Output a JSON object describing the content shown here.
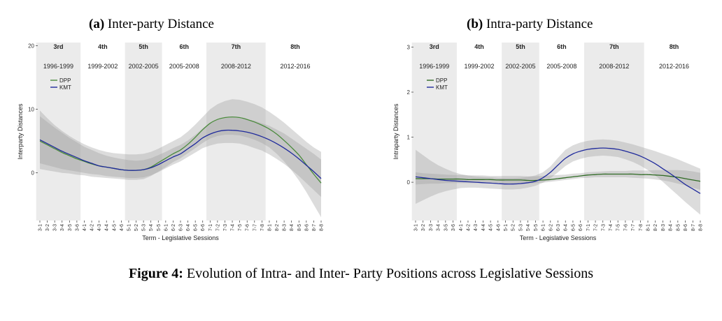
{
  "figure": {
    "caption_label": "Figure 4:",
    "caption_text": "Evolution of Intra- and Inter- Party Positions across Legislative Sessions"
  },
  "chart_data": [
    {
      "id": "a",
      "type": "line",
      "title_label": "(a)",
      "title_text": "Inter-party Distance",
      "xlabel": "Term - Legislative Sessions",
      "ylabel": "Interparty Distances",
      "ylim": [
        -7.5,
        20.5
      ],
      "yticks": [
        0,
        10,
        20
      ],
      "x": [
        "3-1",
        "3-2",
        "3-3",
        "3-4",
        "3-5",
        "3-6",
        "4-1",
        "4-2",
        "4-3",
        "4-4",
        "4-5",
        "4-6",
        "5-1",
        "5-2",
        "5-3",
        "5-4",
        "5-5",
        "6-1",
        "6-2",
        "6-3",
        "6-4",
        "6-5",
        "6-6",
        "7-1",
        "7-2",
        "7-3",
        "7-4",
        "7-5",
        "7-6",
        "7-7",
        "7-8",
        "8-1",
        "8-2",
        "8-3",
        "8-4",
        "8-5",
        "8-6",
        "8-7",
        "8-8"
      ],
      "terms": [
        {
          "name": "3rd",
          "years": "1996-1999",
          "start": 0,
          "end": 5,
          "shaded": true
        },
        {
          "name": "4th",
          "years": "1999-2002",
          "start": 6,
          "end": 11,
          "shaded": false
        },
        {
          "name": "5th",
          "years": "2002-2005",
          "start": 12,
          "end": 16,
          "shaded": true
        },
        {
          "name": "6th",
          "years": "2005-2008",
          "start": 17,
          "end": 22,
          "shaded": false
        },
        {
          "name": "7th",
          "years": "2008-2012",
          "start": 23,
          "end": 30,
          "shaded": true
        },
        {
          "name": "8th",
          "years": "2012-2016",
          "start": 31,
          "end": 38,
          "shaded": false
        }
      ],
      "legend_position": "top-left",
      "series": [
        {
          "name": "DPP",
          "color": "#4a8a3c",
          "values": [
            5.0,
            4.4,
            3.8,
            3.2,
            2.7,
            2.2,
            1.8,
            1.4,
            1.1,
            0.9,
            0.7,
            0.5,
            0.4,
            0.4,
            0.5,
            0.9,
            1.6,
            2.3,
            3.0,
            3.6,
            4.5,
            5.6,
            6.8,
            7.8,
            8.4,
            8.7,
            8.8,
            8.7,
            8.4,
            8.0,
            7.5,
            6.9,
            6.1,
            5.1,
            4.0,
            2.8,
            1.3,
            -0.2,
            -1.6
          ],
          "lower": [
            0.6,
            0.4,
            0.2,
            0.0,
            -0.1,
            -0.3,
            -0.4,
            -0.6,
            -0.7,
            -0.8,
            -0.9,
            -1.0,
            -1.1,
            -1.1,
            -1.0,
            -0.5,
            0.2,
            0.9,
            1.7,
            2.3,
            3.1,
            3.9,
            4.7,
            5.4,
            5.8,
            6.0,
            6.0,
            5.9,
            5.6,
            5.2,
            4.7,
            4.0,
            3.0,
            1.8,
            0.4,
            -1.2,
            -3.0,
            -5.0,
            -7.0
          ],
          "upper": [
            9.8,
            8.6,
            7.5,
            6.6,
            5.8,
            5.1,
            4.5,
            4.0,
            3.6,
            3.3,
            3.1,
            3.0,
            2.9,
            2.9,
            3.0,
            3.3,
            3.8,
            4.4,
            5.0,
            5.6,
            6.5,
            7.6,
            8.8,
            10.0,
            10.8,
            11.3,
            11.6,
            11.5,
            11.2,
            10.8,
            10.3,
            9.6,
            8.8,
            7.9,
            6.9,
            5.9,
            4.9,
            4.0,
            3.3
          ]
        },
        {
          "name": "KMT",
          "color": "#1f2a9c",
          "values": [
            5.2,
            4.6,
            4.0,
            3.4,
            2.9,
            2.4,
            1.9,
            1.5,
            1.1,
            0.9,
            0.7,
            0.5,
            0.4,
            0.4,
            0.5,
            0.8,
            1.3,
            1.9,
            2.5,
            3.0,
            3.8,
            4.6,
            5.5,
            6.1,
            6.5,
            6.7,
            6.7,
            6.6,
            6.4,
            6.1,
            5.7,
            5.2,
            4.6,
            3.9,
            3.1,
            2.2,
            1.2,
            0.2,
            -0.9
          ],
          "lower": [
            1.5,
            1.2,
            0.9,
            0.6,
            0.4,
            0.2,
            0.0,
            -0.2,
            -0.3,
            -0.5,
            -0.6,
            -0.7,
            -0.8,
            -0.8,
            -0.7,
            -0.4,
            0.1,
            0.7,
            1.3,
            1.8,
            2.5,
            3.2,
            3.9,
            4.3,
            4.6,
            4.7,
            4.7,
            4.6,
            4.3,
            3.9,
            3.5,
            2.9,
            2.2,
            1.4,
            0.5,
            -0.5,
            -1.6,
            -2.7,
            -3.8
          ],
          "upper": [
            8.9,
            8.0,
            7.1,
            6.3,
            5.5,
            4.8,
            4.1,
            3.6,
            3.1,
            2.7,
            2.4,
            2.2,
            2.0,
            1.9,
            2.0,
            2.3,
            2.8,
            3.3,
            3.9,
            4.4,
            5.1,
            6.0,
            7.0,
            7.8,
            8.3,
            8.6,
            8.7,
            8.6,
            8.4,
            8.2,
            7.8,
            7.4,
            6.8,
            6.2,
            5.4,
            4.6,
            3.8,
            3.0,
            2.1
          ]
        }
      ]
    },
    {
      "id": "b",
      "type": "line",
      "title_label": "(b)",
      "title_text": "Intra-party Distance",
      "xlabel": "Term - Legislative Sessions",
      "ylabel": "Intraparty Distances",
      "ylim": [
        -0.85,
        3.1
      ],
      "yticks": [
        0,
        1,
        2,
        3
      ],
      "x": [
        "3-1",
        "3-2",
        "3-3",
        "3-4",
        "3-5",
        "3-6",
        "4-1",
        "4-2",
        "4-3",
        "4-4",
        "4-5",
        "4-6",
        "5-1",
        "5-2",
        "5-3",
        "5-4",
        "5-5",
        "6-1",
        "6-2",
        "6-3",
        "6-4",
        "6-5",
        "6-6",
        "7-1",
        "7-2",
        "7-3",
        "7-4",
        "7-5",
        "7-6",
        "7-7",
        "7-8",
        "8-1",
        "8-2",
        "8-3",
        "8-4",
        "8-5",
        "8-6",
        "8-7",
        "8-8"
      ],
      "terms": [
        {
          "name": "3rd",
          "years": "1996-1999",
          "start": 0,
          "end": 5,
          "shaded": true
        },
        {
          "name": "4th",
          "years": "1999-2002",
          "start": 6,
          "end": 11,
          "shaded": false
        },
        {
          "name": "5th",
          "years": "2002-2005",
          "start": 12,
          "end": 16,
          "shaded": true
        },
        {
          "name": "6th",
          "years": "2005-2008",
          "start": 17,
          "end": 22,
          "shaded": false
        },
        {
          "name": "7th",
          "years": "2008-2012",
          "start": 23,
          "end": 30,
          "shaded": true
        },
        {
          "name": "8th",
          "years": "2012-2016",
          "start": 31,
          "end": 38,
          "shaded": false
        }
      ],
      "legend_position": "top-left",
      "series": [
        {
          "name": "DPP",
          "color": "#2f6b24",
          "values": [
            0.08,
            0.08,
            0.08,
            0.07,
            0.07,
            0.07,
            0.07,
            0.06,
            0.06,
            0.06,
            0.06,
            0.05,
            0.05,
            0.05,
            0.05,
            0.04,
            0.04,
            0.05,
            0.06,
            0.08,
            0.1,
            0.12,
            0.14,
            0.16,
            0.17,
            0.18,
            0.18,
            0.18,
            0.18,
            0.18,
            0.17,
            0.17,
            0.16,
            0.15,
            0.13,
            0.11,
            0.08,
            0.05,
            0.02
          ],
          "lower": [
            -0.05,
            -0.04,
            -0.03,
            -0.03,
            -0.02,
            -0.02,
            -0.02,
            -0.02,
            -0.02,
            -0.02,
            -0.02,
            -0.02,
            -0.03,
            -0.03,
            -0.03,
            -0.03,
            -0.02,
            -0.01,
            0.01,
            0.03,
            0.05,
            0.07,
            0.09,
            0.1,
            0.11,
            0.11,
            0.11,
            0.11,
            0.11,
            0.1,
            0.09,
            0.08,
            0.06,
            0.04,
            0.01,
            -0.03,
            -0.07,
            -0.12,
            -0.17
          ],
          "upper": [
            0.22,
            0.2,
            0.19,
            0.18,
            0.17,
            0.16,
            0.16,
            0.15,
            0.15,
            0.15,
            0.14,
            0.14,
            0.14,
            0.14,
            0.14,
            0.13,
            0.13,
            0.14,
            0.15,
            0.16,
            0.17,
            0.19,
            0.2,
            0.22,
            0.23,
            0.24,
            0.25,
            0.25,
            0.25,
            0.26,
            0.26,
            0.26,
            0.27,
            0.27,
            0.27,
            0.27,
            0.26,
            0.24,
            0.21
          ]
        },
        {
          "name": "KMT",
          "color": "#1f2a9c",
          "values": [
            0.12,
            0.1,
            0.08,
            0.06,
            0.04,
            0.03,
            0.02,
            0.01,
            0.0,
            -0.01,
            -0.02,
            -0.03,
            -0.04,
            -0.04,
            -0.03,
            -0.01,
            0.02,
            0.1,
            0.22,
            0.38,
            0.53,
            0.63,
            0.69,
            0.73,
            0.75,
            0.76,
            0.75,
            0.73,
            0.69,
            0.64,
            0.58,
            0.5,
            0.41,
            0.3,
            0.19,
            0.07,
            -0.05,
            -0.15,
            -0.25
          ],
          "lower": [
            -0.48,
            -0.4,
            -0.32,
            -0.25,
            -0.2,
            -0.16,
            -0.13,
            -0.12,
            -0.12,
            -0.13,
            -0.14,
            -0.15,
            -0.16,
            -0.16,
            -0.15,
            -0.12,
            -0.08,
            -0.01,
            0.09,
            0.22,
            0.36,
            0.46,
            0.52,
            0.56,
            0.58,
            0.59,
            0.58,
            0.56,
            0.51,
            0.45,
            0.37,
            0.27,
            0.15,
            0.01,
            -0.14,
            -0.29,
            -0.44,
            -0.58,
            -0.72
          ],
          "upper": [
            0.72,
            0.6,
            0.48,
            0.38,
            0.3,
            0.23,
            0.18,
            0.15,
            0.13,
            0.12,
            0.11,
            0.1,
            0.09,
            0.09,
            0.1,
            0.12,
            0.15,
            0.22,
            0.35,
            0.54,
            0.72,
            0.82,
            0.88,
            0.92,
            0.94,
            0.95,
            0.94,
            0.92,
            0.88,
            0.84,
            0.79,
            0.74,
            0.69,
            0.63,
            0.57,
            0.51,
            0.44,
            0.37,
            0.3
          ]
        }
      ]
    }
  ]
}
